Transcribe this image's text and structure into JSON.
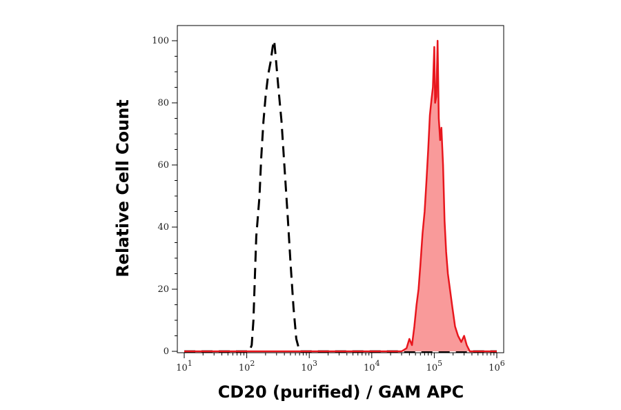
{
  "chart_data": {
    "type": "area",
    "title": "",
    "xlabel": "CD20 (purified) / GAM APC",
    "ylabel": "Relative Cell Count",
    "x_scale": "log",
    "xlim": [
      10,
      1000000
    ],
    "ylim": [
      0,
      100
    ],
    "grid": false,
    "legend": "none",
    "x_ticks": [
      {
        "base": "10",
        "exp": "1",
        "value": 10
      },
      {
        "base": "10",
        "exp": "2",
        "value": 100
      },
      {
        "base": "10",
        "exp": "3",
        "value": 1000
      },
      {
        "base": "10",
        "exp": "4",
        "value": 10000
      },
      {
        "base": "10",
        "exp": "5",
        "value": 100000
      },
      {
        "base": "10",
        "exp": "6",
        "value": 1000000
      }
    ],
    "y_ticks": [
      "0",
      "20",
      "40",
      "60",
      "80",
      "100"
    ],
    "series": [
      {
        "style": "dashed",
        "color": "#000000",
        "fill": "none",
        "points": [
          [
            10,
            0
          ],
          [
            110,
            0
          ],
          [
            120,
            2
          ],
          [
            128,
            10
          ],
          [
            135,
            24
          ],
          [
            142,
            37
          ],
          [
            150,
            43
          ],
          [
            160,
            50
          ],
          [
            170,
            62
          ],
          [
            185,
            74
          ],
          [
            200,
            82
          ],
          [
            220,
            89
          ],
          [
            240,
            93
          ],
          [
            260,
            98
          ],
          [
            275,
            100
          ],
          [
            290,
            95
          ],
          [
            320,
            85
          ],
          [
            360,
            74
          ],
          [
            400,
            60
          ],
          [
            450,
            44
          ],
          [
            500,
            29
          ],
          [
            560,
            14
          ],
          [
            620,
            4
          ],
          [
            700,
            0
          ],
          [
            1000000,
            0
          ]
        ]
      },
      {
        "style": "solid",
        "color": "#e8161d",
        "fill": "#f99a9a",
        "points": [
          [
            10,
            0
          ],
          [
            30000,
            0
          ],
          [
            36000,
            1
          ],
          [
            40000,
            4
          ],
          [
            44000,
            2
          ],
          [
            48000,
            8
          ],
          [
            52000,
            15
          ],
          [
            56000,
            20
          ],
          [
            60000,
            28
          ],
          [
            65000,
            38
          ],
          [
            70000,
            45
          ],
          [
            75000,
            55
          ],
          [
            80000,
            65
          ],
          [
            85000,
            76
          ],
          [
            90000,
            81
          ],
          [
            95000,
            85
          ],
          [
            100000,
            98
          ],
          [
            103000,
            80
          ],
          [
            108000,
            82
          ],
          [
            113000,
            100
          ],
          [
            118000,
            75
          ],
          [
            124000,
            68
          ],
          [
            130000,
            72
          ],
          [
            138000,
            60
          ],
          [
            146000,
            42
          ],
          [
            155000,
            32
          ],
          [
            165000,
            25
          ],
          [
            178000,
            20
          ],
          [
            195000,
            14
          ],
          [
            215000,
            8
          ],
          [
            240000,
            5
          ],
          [
            270000,
            3
          ],
          [
            300000,
            5
          ],
          [
            330000,
            2
          ],
          [
            370000,
            0
          ],
          [
            1000000,
            0
          ]
        ]
      }
    ]
  }
}
